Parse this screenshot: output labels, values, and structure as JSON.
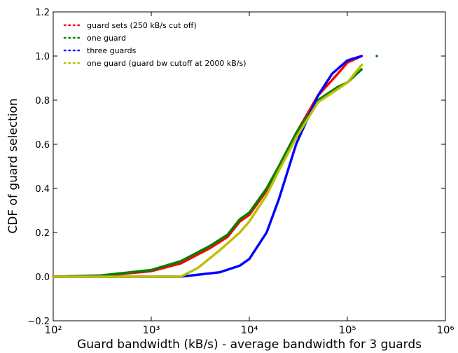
{
  "chart_data": {
    "type": "line",
    "xlabel": "Guard bandwidth (kB/s) - average bandwidth for 3 guards",
    "ylabel": "CDF of guard selection",
    "log_x": true,
    "xlim": [
      100,
      1000000
    ],
    "ylim": [
      -0.2,
      1.2
    ],
    "xticks": [
      {
        "value": 100,
        "label": "10²"
      },
      {
        "value": 1000,
        "label": "10³"
      },
      {
        "value": 10000,
        "label": "10⁴"
      },
      {
        "value": 100000,
        "label": "10⁵"
      },
      {
        "value": 1000000,
        "label": "10⁶"
      }
    ],
    "yticks": [
      {
        "value": -0.2,
        "label": "−0.2"
      },
      {
        "value": 0,
        "label": "0.0"
      },
      0.2,
      0.4,
      0.6,
      0.8,
      {
        "value": 1,
        "label": "1.0"
      },
      1.2
    ],
    "legend": "upper left",
    "series": [
      {
        "name": "guard sets (250 kB/s cut off)",
        "color": "#ff0000",
        "x": [
          100,
          300,
          1000,
          2000,
          4000,
          6000,
          8000,
          10000,
          15000,
          20000,
          30000,
          50000,
          80000,
          100000,
          140000
        ],
        "values": [
          0,
          0.003,
          0.025,
          0.06,
          0.13,
          0.18,
          0.25,
          0.28,
          0.39,
          0.49,
          0.65,
          0.82,
          0.92,
          0.97,
          1.0
        ]
      },
      {
        "name": "one guard",
        "color": "#008000",
        "x": [
          100,
          300,
          1000,
          2000,
          4000,
          6000,
          8000,
          10000,
          15000,
          20000,
          30000,
          50000,
          80000,
          100000,
          140000,
          null,
          200000
        ],
        "values": [
          0,
          0.005,
          0.03,
          0.07,
          0.14,
          0.19,
          0.26,
          0.29,
          0.4,
          0.5,
          0.65,
          0.8,
          0.86,
          0.88,
          0.94,
          null,
          1.0
        ]
      },
      {
        "name": "three guards",
        "color": "#0000ff",
        "x": [
          100,
          2000,
          5000,
          8000,
          10000,
          15000,
          20000,
          30000,
          50000,
          70000,
          100000,
          140000
        ],
        "values": [
          0,
          0,
          0.02,
          0.05,
          0.08,
          0.2,
          0.35,
          0.6,
          0.82,
          0.92,
          0.98,
          1.0
        ]
      },
      {
        "name": "one guard (guard bw cutoff at 2000 kB/s)",
        "color": "#bfbf00",
        "x": [
          100,
          2000,
          3000,
          5000,
          8000,
          10000,
          15000,
          20000,
          30000,
          50000,
          80000,
          100000,
          140000
        ],
        "values": [
          0,
          0,
          0.04,
          0.12,
          0.2,
          0.25,
          0.37,
          0.48,
          0.63,
          0.79,
          0.85,
          0.88,
          0.96
        ]
      }
    ]
  }
}
